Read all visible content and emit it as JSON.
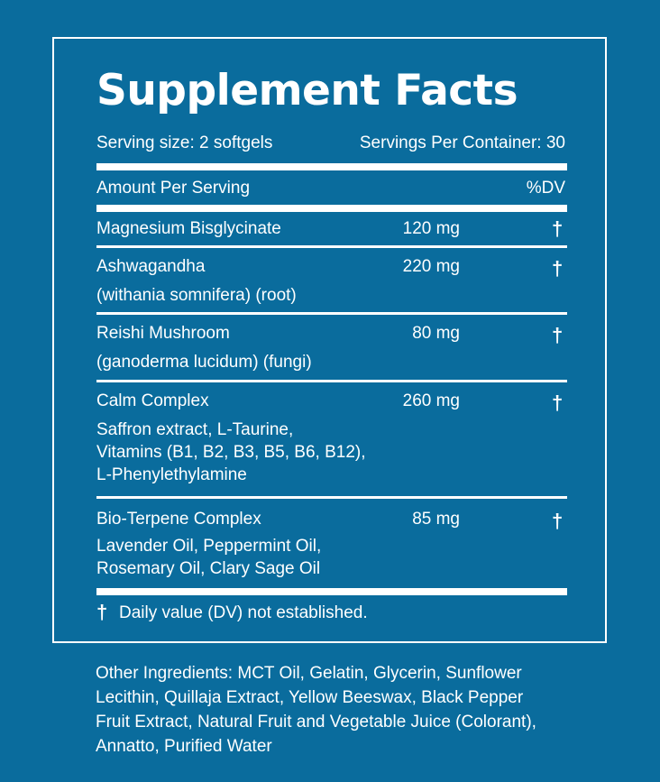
{
  "title": "Supplement Facts",
  "serving_size": "Serving size: 2 softgels",
  "servings_per_container": "Servings Per Container: 30",
  "amount_per_serving": "Amount Per Serving",
  "dv_header": "%DV",
  "rows": [
    {
      "name": "Magnesium Bisglycinate",
      "amount": "120 mg",
      "dv": "†"
    },
    {
      "name": "Ashwagandha",
      "sub": [
        "(withania somnifera) (root)"
      ],
      "amount": "220 mg",
      "dv": "†"
    },
    {
      "name": "Reishi Mushroom",
      "sub": [
        "(ganoderma lucidum) (fungi)"
      ],
      "amount": "80 mg",
      "dv": "†"
    },
    {
      "name": "Calm Complex",
      "sub": [
        "Saffron extract, L-Taurine,",
        "Vitamins (B1, B2, B3, B5, B6, B12),",
        "L-Phenylethylamine"
      ],
      "amount": "260 mg",
      "dv": "†"
    },
    {
      "name": "Bio-Terpene Complex",
      "sub": [
        "Lavender Oil, Peppermint Oil,",
        "Rosemary Oil, Clary Sage Oil"
      ],
      "amount": "85 mg",
      "dv": "†"
    }
  ],
  "footnote_symbol": "†",
  "footnote": "Daily value (DV) not established.",
  "other_ingredients": [
    "Other Ingredients: MCT Oil, Gelatin, Glycerin, Sunflower",
    "Lecithin, Quillaja Extract, Yellow Beeswax, Black Pepper",
    "Fruit Extract, Natural Fruit and Vegetable Juice (Colorant),",
    "Annatto, Purified Water"
  ],
  "colors": {
    "background": "#0a6c9d",
    "foreground": "#ffffff"
  }
}
